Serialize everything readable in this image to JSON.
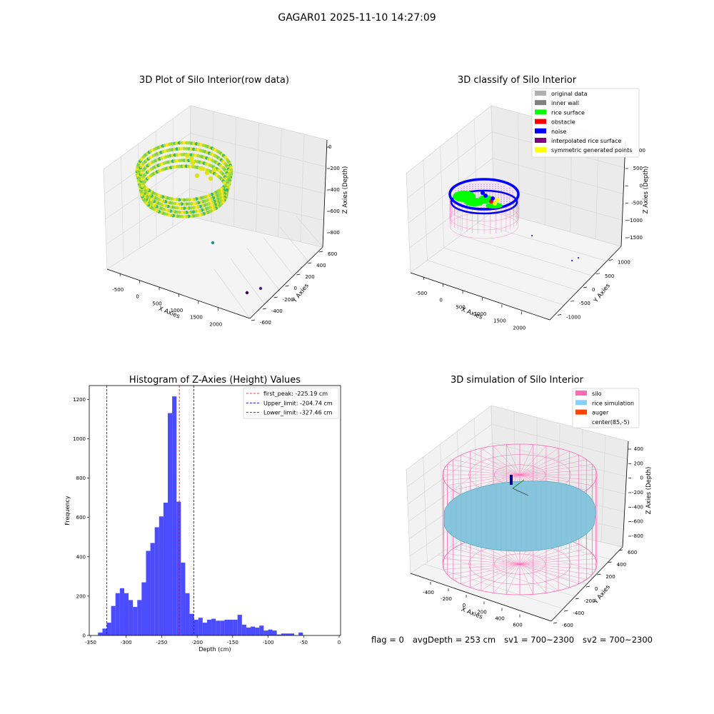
{
  "figure": {
    "suptitle": "GAGAR01 2025-11-10 14:27:09",
    "status": {
      "flag": "flag = 0",
      "avg_depth": "avgDepth = 253 cm",
      "sv1": "sv1 = 700~2300",
      "sv2": "sv2 = 700~2300"
    }
  },
  "colors": {
    "hist_bar": "#4b4bff",
    "peak_line": "#ff0000",
    "limit_line": "#0000ff",
    "silo": "#ff69b4",
    "rice_sim": "#87cefa",
    "auger": "#ff4500",
    "original": "#b0b0b0",
    "inner_wall": "#808080",
    "rice_surface": "#00ff00",
    "obstacle": "#ff0000",
    "noise": "#0000ff",
    "interp": "#800080",
    "symmetric": "#ffff00"
  },
  "chart_data": [
    {
      "type": "scatter",
      "panel": "3d-raw",
      "title": "3D Plot of Silo Interior(row data)",
      "xlabel": "X Axies",
      "ylabel": "Y Axies",
      "zlabel": "Z Axies (Depth)",
      "x_ticks": [
        "-500",
        "0",
        "500",
        "1000",
        "1500",
        "2000"
      ],
      "y_ticks": [
        "-600",
        "-400",
        "-200",
        "0",
        "200",
        "400",
        "600"
      ],
      "z_ticks": [
        "-800",
        "-600",
        "-400",
        "-200",
        "0"
      ],
      "outliers": [
        [
          1100,
          300,
          -600
        ],
        [
          1800,
          -400,
          -900
        ],
        [
          2000,
          -300,
          -950
        ]
      ]
    },
    {
      "type": "scatter",
      "panel": "3d-classify",
      "title": "3D classify of Silo Interior",
      "xlabel": "X Axies",
      "ylabel": "Y Axies",
      "zlabel": "Z Axies (Depth)",
      "x_ticks": [
        "-500",
        "0",
        "500",
        "1000",
        "1500",
        "2000"
      ],
      "y_ticks": [
        "-1000",
        "-500",
        "0",
        "500",
        "1000"
      ],
      "z_ticks": [
        "-1500",
        "-1000",
        "-500",
        "0",
        "500"
      ],
      "legend": [
        {
          "label": "original data",
          "color": "#b0b0b0"
        },
        {
          "label": "inner wall",
          "color": "#808080"
        },
        {
          "label": "rice surface",
          "color": "#00ff00"
        },
        {
          "label": "obstacle",
          "color": "#ff0000"
        },
        {
          "label": "noise",
          "color": "#0000ff"
        },
        {
          "label": "interpolated rice surface",
          "color": "#800080"
        },
        {
          "label": "symmetric generated points",
          "color": "#ffff00"
        }
      ],
      "legend_partial_tick": "00"
    },
    {
      "type": "bar",
      "panel": "histogram",
      "title": "Histogram of Z-Axies (Height) Values",
      "xlabel": "Depth (cm)",
      "ylabel": "Frequency",
      "xlim": [
        -352,
        2
      ],
      "ylim": [
        0,
        1270
      ],
      "x_ticks": [
        -350,
        -300,
        -250,
        -200,
        -150,
        -100,
        -50,
        0
      ],
      "y_ticks": [
        0,
        200,
        400,
        600,
        800,
        1000,
        1200
      ],
      "bin_start": -339.6,
      "bin_width": 6.14,
      "counts": [
        15,
        35,
        65,
        150,
        215,
        240,
        215,
        180,
        145,
        180,
        270,
        430,
        470,
        550,
        605,
        675,
        1130,
        1215,
        680,
        370,
        215,
        110,
        80,
        90,
        65,
        80,
        85,
        75,
        75,
        80,
        80,
        80,
        105,
        55,
        40,
        45,
        40,
        50,
        25,
        30,
        25,
        5,
        10,
        10,
        10,
        0,
        15
      ],
      "vlines": [
        {
          "label": "first_peak: -225.19 cm",
          "x": -225.19,
          "color": "#ff0000"
        },
        {
          "label": "Upper_limit: -204.74 cm",
          "x": -204.74,
          "color": "#0000ff"
        },
        {
          "label": "Lower_limit: -327.46 cm",
          "x": -327.46,
          "color": "#0000ff"
        }
      ]
    },
    {
      "type": "scatter",
      "panel": "3d-simulation",
      "title": "3D simulation of Silo Interior",
      "xlabel": "X Axies",
      "ylabel": "Y Axies",
      "zlabel": "Z Axies (Depth)",
      "x_ticks": [
        "-400",
        "-200",
        "0",
        "200",
        "400",
        "600"
      ],
      "y_ticks": [
        "-600",
        "-400",
        "-200",
        "0",
        "200",
        "400",
        "600"
      ],
      "z_ticks": [
        "-800",
        "-600",
        "-400",
        "-200",
        "0",
        "200",
        "400"
      ],
      "legend": [
        {
          "label": "silo",
          "color": "#ff69b4"
        },
        {
          "label": "rice simulation",
          "color": "#87cefa"
        },
        {
          "label": "auger",
          "color": "#ff4500"
        },
        {
          "label": "center(85,-5)",
          "color": ""
        }
      ]
    }
  ]
}
